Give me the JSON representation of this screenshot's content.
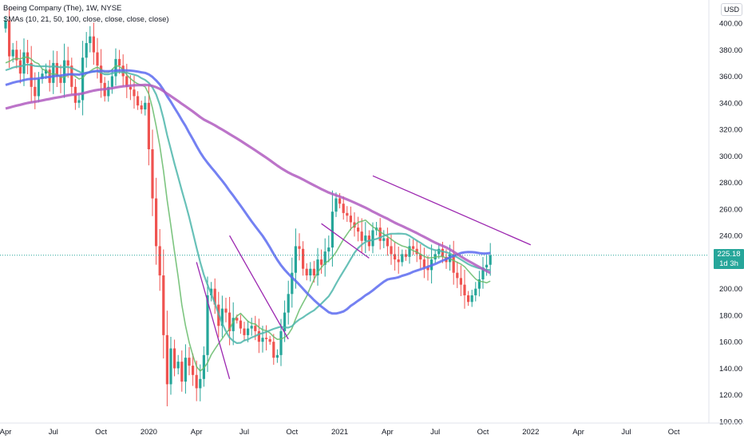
{
  "header": {
    "title": "Boeing Company (The), 1W, NYSE",
    "studies": "SMAs (10, 21, 50, 100, close, close, close, close)",
    "currency": "USD"
  },
  "price_label": {
    "price": "225.18",
    "countdown": "1d 3h"
  },
  "colors": {
    "up": "#26a69a",
    "down": "#ef5350",
    "sma10": "#66bb6a",
    "sma21": "#4db6ac",
    "sma50": "#5c6bf0",
    "sma100": "#b05cc0",
    "trendline": "#9c27b0",
    "price_line": "#26a69a",
    "axis_text": "#131722"
  },
  "chart_data": {
    "type": "candlestick",
    "title": "Boeing Company (The), 1W, NYSE",
    "ylim": [
      100,
      410
    ],
    "y_ticks": [
      100,
      120,
      140,
      160,
      180,
      200,
      220,
      240,
      260,
      280,
      300,
      320,
      340,
      360,
      380,
      400
    ],
    "y_tick_labels": [
      "100.00",
      "120.00",
      "140.00",
      "160.00",
      "180.00",
      "200.00",
      "220.00",
      "240.00",
      "260.00",
      "280.00",
      "300.00",
      "320.00",
      "340.00",
      "360.00",
      "380.00",
      "400.00"
    ],
    "x_tick_labels": [
      "Apr",
      "Jul",
      "Oct",
      "2020",
      "Apr",
      "Jul",
      "Oct",
      "2021",
      "Apr",
      "Jul",
      "Oct",
      "2022",
      "Apr",
      "Jul",
      "Oct"
    ],
    "x_tick_index": [
      0,
      13,
      26,
      39,
      52,
      65,
      78,
      91,
      104,
      117,
      130,
      143,
      156,
      169,
      182
    ],
    "last_price": 225.18,
    "close": [
      402,
      375,
      380,
      372,
      362,
      378,
      370,
      352,
      345,
      358,
      362,
      365,
      355,
      370,
      360,
      355,
      372,
      368,
      352,
      340,
      342,
      374,
      385,
      390,
      378,
      368,
      355,
      345,
      352,
      360,
      373,
      368,
      360,
      352,
      350,
      345,
      338,
      335,
      340,
      305,
      268,
      232,
      210,
      165,
      128,
      155,
      140,
      145,
      130,
      148,
      142,
      135,
      125,
      132,
      150,
      195,
      200,
      188,
      172,
      185,
      182,
      168,
      178,
      176,
      170,
      165,
      170,
      172,
      168,
      160,
      163,
      162,
      160,
      148,
      150,
      168,
      182,
      196,
      212,
      232,
      230,
      215,
      210,
      215,
      210,
      222,
      218,
      228,
      231,
      258,
      268,
      264,
      257,
      255,
      250,
      246,
      243,
      236,
      240,
      232,
      244,
      246,
      236,
      238,
      232,
      226,
      222,
      220,
      226,
      224,
      232,
      230,
      226,
      222,
      216,
      214,
      222,
      226,
      230,
      224,
      220,
      226,
      212,
      208,
      203,
      195,
      190,
      195,
      200,
      207,
      216,
      218,
      225.18
    ],
    "series": [
      {
        "name": "SMA 10"
      },
      {
        "name": "SMA 21"
      },
      {
        "name": "SMA 50"
      },
      {
        "name": "SMA 100"
      }
    ],
    "trendlines": [
      {
        "from": [
          0,
          0
        ],
        "to": [
          0,
          0
        ]
      }
    ]
  }
}
